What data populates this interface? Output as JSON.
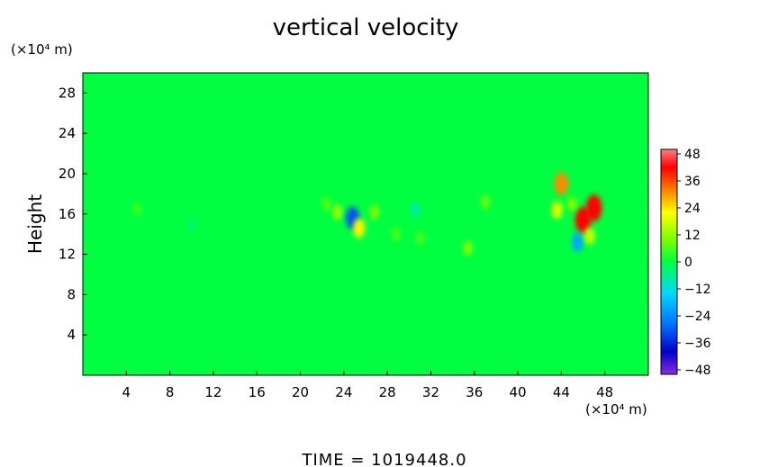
{
  "chart_data": {
    "type": "heatmap",
    "title": "vertical velocity",
    "ylabel": "Height",
    "x_unit": "(×10⁴ m)",
    "y_unit": "(×10⁴ m)",
    "xlim": [
      0,
      52
    ],
    "ylim": [
      0,
      30
    ],
    "x_ticks": [
      4,
      8,
      12,
      16,
      20,
      24,
      28,
      32,
      36,
      40,
      44,
      48
    ],
    "y_ticks": [
      4,
      8,
      12,
      16,
      20,
      24,
      28
    ],
    "colorbar": {
      "range": [
        -48,
        48
      ],
      "ticks": [
        48,
        36,
        24,
        12,
        0,
        -12,
        -24,
        -36,
        -48
      ],
      "colors": [
        "#8a2be2",
        "#0000c8",
        "#0070ff",
        "#00d8ff",
        "#00ff40",
        "#7cff00",
        "#ffff00",
        "#ff8000",
        "#ff0000",
        "#ff8080"
      ]
    },
    "background_value": 0,
    "features": [
      {
        "x": 24.8,
        "y": 15.6,
        "value": -30
      },
      {
        "x": 25.4,
        "y": 14.6,
        "value": 22
      },
      {
        "x": 23.4,
        "y": 16.2,
        "value": 12
      },
      {
        "x": 26.8,
        "y": 16.2,
        "value": 10
      },
      {
        "x": 30.6,
        "y": 16.4,
        "value": -8
      },
      {
        "x": 44.0,
        "y": 19.0,
        "value": 30
      },
      {
        "x": 43.6,
        "y": 16.4,
        "value": 18
      },
      {
        "x": 46.0,
        "y": 15.4,
        "value": 40
      },
      {
        "x": 47.0,
        "y": 16.6,
        "value": 40
      },
      {
        "x": 45.5,
        "y": 13.2,
        "value": -20
      },
      {
        "x": 46.6,
        "y": 13.8,
        "value": 16
      },
      {
        "x": 45.0,
        "y": 17.0,
        "value": 10
      },
      {
        "x": 37.0,
        "y": 17.2,
        "value": 8
      },
      {
        "x": 35.4,
        "y": 12.6,
        "value": 10
      },
      {
        "x": 31.0,
        "y": 13.6,
        "value": 6
      },
      {
        "x": 28.8,
        "y": 14.0,
        "value": 6
      },
      {
        "x": 22.4,
        "y": 17.0,
        "value": 7
      },
      {
        "x": 5.0,
        "y": 16.5,
        "value": 5
      },
      {
        "x": 10.0,
        "y": 15.0,
        "value": -4
      }
    ],
    "time_label": "TIME  =  1019448.0"
  }
}
